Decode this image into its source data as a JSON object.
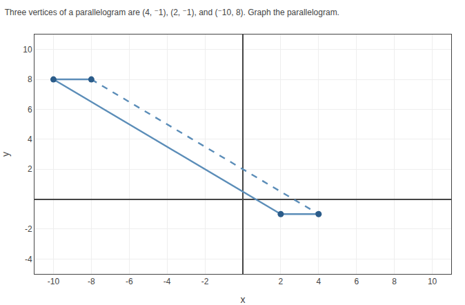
{
  "chart_data": {
    "type": "line",
    "title": "Three vertices of a parallelogram are (4, ⁻1), (2, ⁻1), and (⁻10, 8). Graph the parallelogram.",
    "xlabel": "x",
    "ylabel": "y",
    "series": [
      {
        "type": "line",
        "x": [
          -10,
          -8
        ],
        "values": [
          8,
          8
        ],
        "color": "#5b8db8",
        "line_style": "solid"
      },
      {
        "type": "line",
        "x": [
          -10,
          2
        ],
        "values": [
          8,
          -1
        ],
        "color": "#5b8db8",
        "line_style": "solid"
      },
      {
        "type": "line",
        "x": [
          2,
          4
        ],
        "values": [
          -1,
          -1
        ],
        "color": "#5b8db8",
        "line_style": "solid"
      },
      {
        "type": "line",
        "x": [
          -8,
          4
        ],
        "values": [
          8,
          -1
        ],
        "color": "#5b8db8",
        "line_style": "dashed"
      },
      {
        "type": "scatter",
        "x": [
          4,
          2,
          -10,
          -8
        ],
        "values": [
          -1,
          -1,
          8,
          8
        ],
        "color": "#2b5c8a",
        "marker": "circle"
      }
    ],
    "xlim": [
      -11,
      11
    ],
    "ylim": [
      -5,
      11
    ],
    "xticks": [
      -10,
      -8,
      -6,
      -4,
      -2,
      2,
      4,
      6,
      8,
      10
    ],
    "yticks": [
      -4,
      -2,
      2,
      4,
      6,
      8,
      10
    ],
    "grid": true
  }
}
